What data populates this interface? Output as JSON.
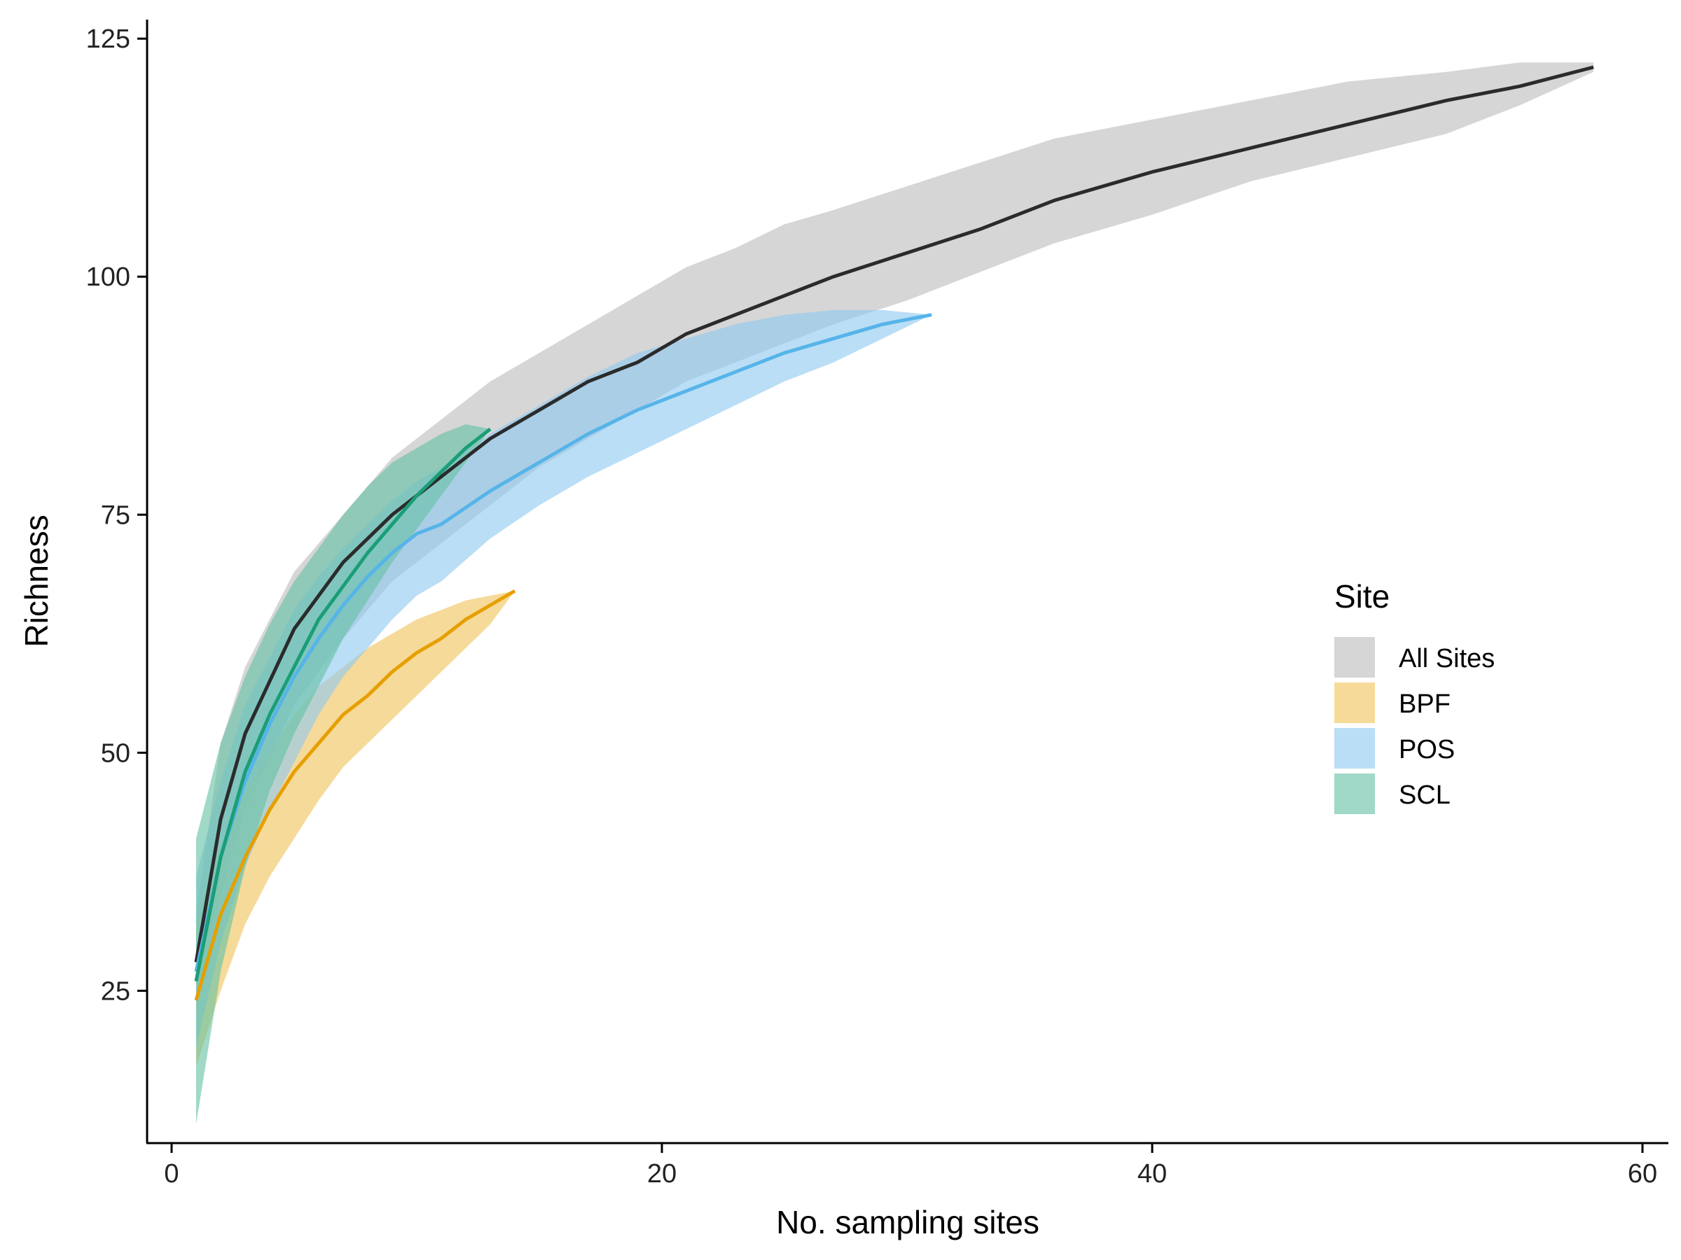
{
  "chart_data": {
    "type": "line",
    "xlabel": "No. sampling sites",
    "ylabel": "Richness",
    "xlim": [
      -1,
      61
    ],
    "ylim": [
      9,
      127
    ],
    "xticks": [
      0,
      20,
      40,
      60
    ],
    "yticks": [
      25,
      50,
      75,
      100,
      125
    ],
    "grid": false,
    "legend": {
      "title": "Site",
      "placement": "right"
    },
    "series": [
      {
        "name": "All Sites",
        "line_color": "#2b2b2b",
        "band_color": "#bdbdbd",
        "x": [
          1,
          2,
          3,
          5,
          7,
          9,
          11,
          13,
          15,
          17,
          19,
          21,
          23,
          25,
          27,
          30,
          33,
          36,
          40,
          44,
          48,
          52,
          55,
          58
        ],
        "y": [
          28,
          43,
          52,
          63,
          70,
          75,
          79,
          83,
          86,
          89,
          91,
          94,
          96,
          98,
          100,
          102.5,
          105,
          108,
          111,
          113.5,
          116,
          118.5,
          120,
          122
        ],
        "lower": [
          23,
          35,
          44,
          55,
          62,
          68,
          72,
          76,
          80,
          83,
          86,
          89,
          91,
          93,
          95,
          97.5,
          100.5,
          103.5,
          106.5,
          110,
          112.5,
          115,
          118,
          121.5
        ],
        "upper": [
          33,
          51,
          59,
          69,
          75,
          81,
          85,
          89,
          92,
          95,
          98,
          101,
          103,
          105.5,
          107,
          109.5,
          112,
          114.5,
          116.5,
          118.5,
          120.5,
          121.5,
          122.5,
          122.5
        ]
      },
      {
        "name": "BPF",
        "line_color": "#e69f00",
        "band_color": "#f0c45a",
        "x": [
          1,
          2,
          3,
          4,
          5,
          6,
          7,
          8,
          9,
          10,
          11,
          12,
          13,
          14
        ],
        "y": [
          24,
          33,
          39,
          44,
          48,
          51,
          54,
          56,
          58.5,
          60.5,
          62,
          64,
          65.5,
          67
        ],
        "lower": [
          17,
          25,
          32,
          37,
          41,
          45,
          48.5,
          51,
          53.5,
          56,
          58.5,
          61,
          63.5,
          67
        ],
        "upper": [
          32,
          40,
          46,
          50,
          54,
          57,
          59,
          61,
          62.5,
          64,
          65,
          66,
          66.5,
          67
        ]
      },
      {
        "name": "POS",
        "line_color": "#56b4e9",
        "band_color": "#8fcaf0",
        "x": [
          1,
          2,
          3,
          4,
          5,
          6,
          7,
          8,
          9,
          10,
          11,
          13,
          15,
          17,
          19,
          21,
          23,
          25,
          27,
          29,
          31
        ],
        "y": [
          27,
          39,
          47,
          53,
          58,
          62,
          65.5,
          68.5,
          71,
          73,
          74,
          77.5,
          80.5,
          83.5,
          86,
          88,
          90,
          92,
          93.5,
          95,
          96
        ],
        "lower": [
          19,
          30,
          38,
          44,
          49,
          54,
          58,
          61,
          64,
          66.5,
          68,
          72.5,
          76,
          79,
          81.5,
          84,
          86.5,
          89,
          91,
          93.5,
          96
        ],
        "upper": [
          37,
          47,
          55,
          60,
          65,
          68.5,
          71.5,
          74,
          76.5,
          78.5,
          80,
          83.5,
          86.5,
          89.5,
          92,
          93.5,
          95,
          96,
          96.5,
          96.5,
          96
        ]
      },
      {
        "name": "SCL",
        "line_color": "#1a9e77",
        "band_color": "#66c2a5",
        "x": [
          1,
          2,
          3,
          4,
          5,
          6,
          7,
          8,
          9,
          10,
          11,
          12,
          13
        ],
        "y": [
          26,
          39,
          48,
          54,
          59,
          64,
          67.5,
          71,
          74,
          77,
          79.5,
          82,
          84
        ],
        "lower": [
          11,
          27,
          38,
          46,
          52,
          57,
          62,
          66,
          70,
          73.5,
          77,
          80.5,
          84
        ],
        "upper": [
          41,
          51,
          58,
          63.5,
          68,
          71.5,
          75,
          78,
          80.5,
          82,
          83.5,
          84.5,
          84
        ]
      }
    ]
  }
}
